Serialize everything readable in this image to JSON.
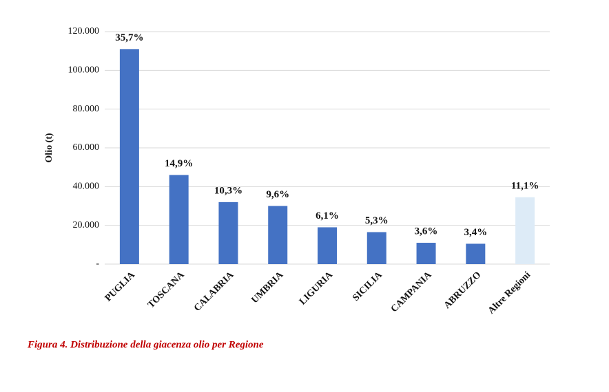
{
  "chart_data": {
    "type": "bar",
    "y_label": "Olio (t)",
    "caption": "Figura 4. Distribuzione della giacenza olio per Regione",
    "categories": [
      "PUGLIA",
      "TOSCANA",
      "CALABRIA",
      "UMBRIA",
      "LIGURIA",
      "SICILIA",
      "CAMPANIA",
      "ABRUZZO",
      "Altre Regioni"
    ],
    "values": [
      111000,
      46000,
      32000,
      30000,
      19000,
      16500,
      11000,
      10500,
      34500
    ],
    "percent_labels": [
      "35,7%",
      "14,9%",
      "10,3%",
      "9,6%",
      "6,1%",
      "5,3%",
      "3,6%",
      "3,4%",
      "11,1%"
    ],
    "colors": [
      "#4472c4",
      "#4472c4",
      "#4472c4",
      "#4472c4",
      "#4472c4",
      "#4472c4",
      "#4472c4",
      "#4472c4",
      "#ddebf7"
    ],
    "ylim": [
      0,
      120000
    ],
    "yticks": [
      {
        "value": 0,
        "label": "-"
      },
      {
        "value": 20000,
        "label": "20.000"
      },
      {
        "value": 40000,
        "label": "40.000"
      },
      {
        "value": 60000,
        "label": "60.000"
      },
      {
        "value": 80000,
        "label": "80.000"
      },
      {
        "value": 100000,
        "label": "100.000"
      },
      {
        "value": 120000,
        "label": "120.000"
      }
    ],
    "grid": true
  }
}
